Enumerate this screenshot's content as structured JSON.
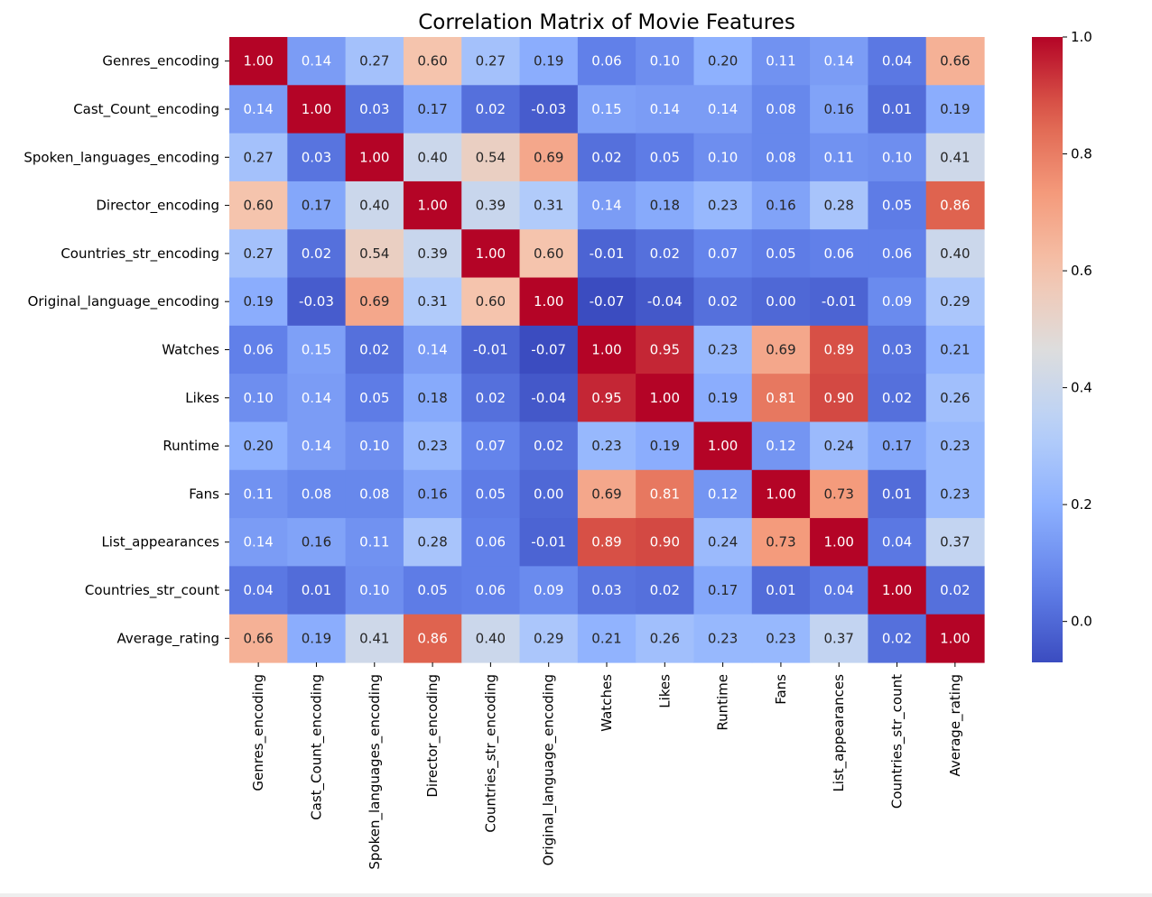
{
  "chart_data": {
    "type": "heatmap",
    "title": "Correlation Matrix of Movie Features",
    "colormap": "coolwarm",
    "vmin": -0.07,
    "vmax": 1.0,
    "colorbar_ticks": [
      0.0,
      0.2,
      0.4,
      0.6,
      0.8,
      1.0
    ],
    "colorbar_tick_labels": [
      "0.0",
      "0.2",
      "0.4",
      "0.6",
      "0.8",
      "1.0"
    ],
    "labels": [
      "Genres_encoding",
      "Cast_Count_encoding",
      "Spoken_languages_encoding",
      "Director_encoding",
      "Countries_str_encoding",
      "Original_language_encoding",
      "Watches",
      "Likes",
      "Runtime",
      "Fans",
      "List_appearances",
      "Countries_str_count",
      "Average_rating"
    ],
    "matrix": [
      [
        1.0,
        0.14,
        0.27,
        0.6,
        0.27,
        0.19,
        0.06,
        0.1,
        0.2,
        0.11,
        0.14,
        0.04,
        0.66
      ],
      [
        0.14,
        1.0,
        0.03,
        0.17,
        0.02,
        -0.03,
        0.15,
        0.14,
        0.14,
        0.08,
        0.16,
        0.01,
        0.19
      ],
      [
        0.27,
        0.03,
        1.0,
        0.4,
        0.54,
        0.69,
        0.02,
        0.05,
        0.1,
        0.08,
        0.11,
        0.1,
        0.41
      ],
      [
        0.6,
        0.17,
        0.4,
        1.0,
        0.39,
        0.31,
        0.14,
        0.18,
        0.23,
        0.16,
        0.28,
        0.05,
        0.86
      ],
      [
        0.27,
        0.02,
        0.54,
        0.39,
        1.0,
        0.6,
        -0.01,
        0.02,
        0.07,
        0.05,
        0.06,
        0.06,
        0.4
      ],
      [
        0.19,
        -0.03,
        0.69,
        0.31,
        0.6,
        1.0,
        -0.07,
        -0.04,
        0.02,
        0.0,
        -0.01,
        0.09,
        0.29
      ],
      [
        0.06,
        0.15,
        0.02,
        0.14,
        -0.01,
        -0.07,
        1.0,
        0.95,
        0.23,
        0.69,
        0.89,
        0.03,
        0.21
      ],
      [
        0.1,
        0.14,
        0.05,
        0.18,
        0.02,
        -0.04,
        0.95,
        1.0,
        0.19,
        0.81,
        0.9,
        0.02,
        0.26
      ],
      [
        0.2,
        0.14,
        0.1,
        0.23,
        0.07,
        0.02,
        0.23,
        0.19,
        1.0,
        0.12,
        0.24,
        0.17,
        0.23
      ],
      [
        0.11,
        0.08,
        0.08,
        0.16,
        0.05,
        0.0,
        0.69,
        0.81,
        0.12,
        1.0,
        0.73,
        0.01,
        0.23
      ],
      [
        0.14,
        0.16,
        0.11,
        0.28,
        0.06,
        -0.01,
        0.89,
        0.9,
        0.24,
        0.73,
        1.0,
        0.04,
        0.37
      ],
      [
        0.04,
        0.01,
        0.1,
        0.05,
        0.06,
        0.09,
        0.03,
        0.02,
        0.17,
        0.01,
        0.04,
        1.0,
        0.02
      ],
      [
        0.66,
        0.19,
        0.41,
        0.86,
        0.4,
        0.29,
        0.21,
        0.26,
        0.23,
        0.23,
        0.37,
        0.02,
        1.0
      ]
    ]
  }
}
